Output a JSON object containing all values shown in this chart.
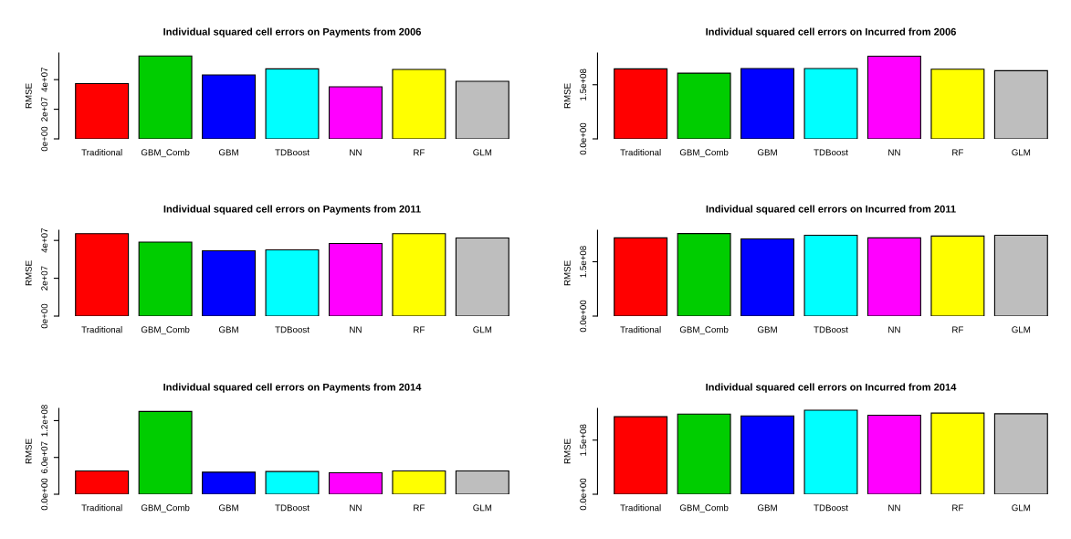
{
  "chart_data": [
    {
      "type": "bar",
      "title": "Individual squared cell errors on Payments from 2006",
      "ylabel": "RMSE",
      "categories": [
        "Traditional",
        "GBM_Comb",
        "GBM",
        "TDBoost",
        "NN",
        "RF",
        "GLM"
      ],
      "colors": [
        "#ff0000",
        "#00cd00",
        "#0000ff",
        "#00ffff",
        "#ff00ff",
        "#ffff00",
        "#bebebe"
      ],
      "values": [
        37300000,
        56000000,
        43200000,
        47300000,
        35200000,
        46900000,
        38900000
      ],
      "ylim": [
        0,
        58000000
      ],
      "yticks": [
        {
          "value": 0,
          "label": "0e+00"
        },
        {
          "value": 20000000,
          "label": "2e+07"
        },
        {
          "value": 40000000,
          "label": "4e+07"
        }
      ],
      "grid": false,
      "legend": false
    },
    {
      "type": "bar",
      "title": "Individual squared cell errors on Incurred from 2006",
      "ylabel": "RMSE",
      "categories": [
        "Traditional",
        "GBM_Comb",
        "GBM",
        "TDBoost",
        "NN",
        "RF",
        "GLM"
      ],
      "colors": [
        "#ff0000",
        "#00cd00",
        "#0000ff",
        "#00ffff",
        "#ff00ff",
        "#ffff00",
        "#bebebe"
      ],
      "values": [
        194000000,
        182000000,
        195000000,
        195000000,
        229000000,
        193000000,
        189000000
      ],
      "ylim": [
        0,
        238000000
      ],
      "yticks": [
        {
          "value": 0,
          "label": "0.0e+00"
        },
        {
          "value": 150000000,
          "label": "1.5e+08"
        }
      ],
      "grid": false,
      "legend": false
    },
    {
      "type": "bar",
      "title": "Individual squared cell errors on Payments from 2011",
      "ylabel": "RMSE",
      "categories": [
        "Traditional",
        "GBM_Comb",
        "GBM",
        "TDBoost",
        "NN",
        "RF",
        "GLM"
      ],
      "colors": [
        "#ff0000",
        "#00cd00",
        "#0000ff",
        "#00ffff",
        "#ff00ff",
        "#ffff00",
        "#bebebe"
      ],
      "values": [
        43600000,
        39100000,
        34500000,
        35000000,
        38400000,
        43600000,
        41300000
      ],
      "ylim": [
        0,
        45400000
      ],
      "yticks": [
        {
          "value": 0,
          "label": "0e+00"
        },
        {
          "value": 20000000,
          "label": "2e+07"
        },
        {
          "value": 40000000,
          "label": "4e+07"
        }
      ],
      "grid": false,
      "legend": false
    },
    {
      "type": "bar",
      "title": "Individual squared cell errors on Incurred from 2011",
      "ylabel": "RMSE",
      "categories": [
        "Traditional",
        "GBM_Comb",
        "GBM",
        "TDBoost",
        "NN",
        "RF",
        "GLM"
      ],
      "colors": [
        "#ff0000",
        "#00cd00",
        "#0000ff",
        "#00ffff",
        "#ff00ff",
        "#ffff00",
        "#bebebe"
      ],
      "values": [
        216000000,
        228000000,
        213000000,
        223000000,
        216000000,
        221000000,
        223000000
      ],
      "ylim": [
        0,
        237000000
      ],
      "yticks": [
        {
          "value": 0,
          "label": "0.0e+00"
        },
        {
          "value": 150000000,
          "label": "1.5e+08"
        }
      ],
      "grid": false,
      "legend": false
    },
    {
      "type": "bar",
      "title": "Individual squared cell errors on Payments from 2014",
      "ylabel": "RMSE",
      "categories": [
        "Traditional",
        "GBM_Comb",
        "GBM",
        "TDBoost",
        "NN",
        "RF",
        "GLM"
      ],
      "colors": [
        "#ff0000",
        "#00cd00",
        "#0000ff",
        "#00ffff",
        "#ff00ff",
        "#ffff00",
        "#bebebe"
      ],
      "values": [
        38000000,
        135000000,
        36000000,
        37000000,
        35000000,
        38000000,
        38000000
      ],
      "ylim": [
        0,
        140000000
      ],
      "yticks": [
        {
          "value": 0,
          "label": "0.0e+00"
        },
        {
          "value": 60000000,
          "label": "6.0e+07"
        },
        {
          "value": 120000000,
          "label": "1.2e+08"
        }
      ],
      "grid": false,
      "legend": false
    },
    {
      "type": "bar",
      "title": "Individual squared cell errors on Incurred from 2014",
      "ylabel": "RMSE",
      "categories": [
        "Traditional",
        "GBM_Comb",
        "GBM",
        "TDBoost",
        "NN",
        "RF",
        "GLM"
      ],
      "colors": [
        "#ff0000",
        "#00cd00",
        "#0000ff",
        "#00ffff",
        "#ff00ff",
        "#ffff00",
        "#bebebe"
      ],
      "values": [
        215000000,
        222000000,
        217000000,
        233000000,
        219000000,
        225000000,
        223000000
      ],
      "ylim": [
        0,
        238000000
      ],
      "yticks": [
        {
          "value": 0,
          "label": "0.0e+00"
        },
        {
          "value": 150000000,
          "label": "1.5e+08"
        }
      ],
      "grid": false,
      "legend": false
    }
  ]
}
